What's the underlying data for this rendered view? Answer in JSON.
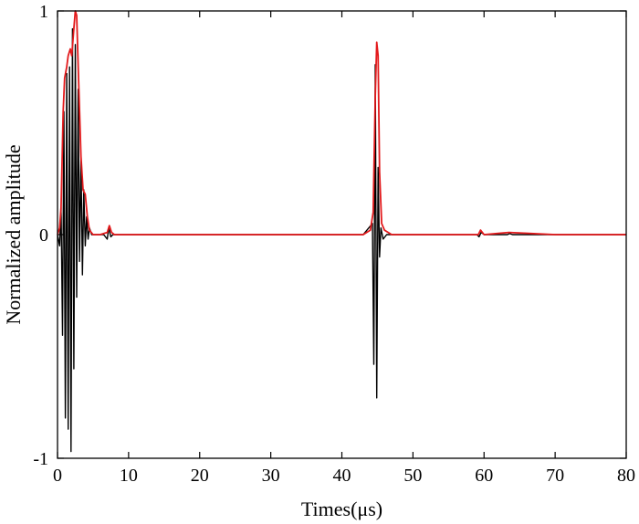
{
  "chart_data": {
    "type": "line",
    "title": "",
    "xlabel": "Times(μs)",
    "ylabel": "Normalized amplitude",
    "xlim": [
      0,
      80
    ],
    "ylim": [
      -1,
      1
    ],
    "xticks": [
      0,
      10,
      20,
      30,
      40,
      50,
      60,
      70,
      80
    ],
    "yticks": [
      -1,
      0,
      1
    ],
    "grid": false,
    "legend": "none",
    "series": [
      {
        "color": "#000000",
        "style": "oscillating waveform",
        "x": [
          0,
          0.3,
          0.5,
          0.7,
          0.9,
          1.1,
          1.3,
          1.5,
          1.7,
          1.9,
          2.1,
          2.3,
          2.5,
          2.7,
          2.9,
          3.1,
          3.3,
          3.5,
          3.7,
          3.9,
          4.1,
          4.3,
          4.5,
          4.8,
          5.5,
          6.5,
          7.0,
          7.2,
          7.5,
          7.8,
          8.3,
          10,
          20,
          30,
          40,
          43,
          44.3,
          44.5,
          44.7,
          44.9,
          45.1,
          45.3,
          45.5,
          45.8,
          46.3,
          48,
          55,
          59.0,
          59.3,
          59.6,
          60,
          63.3,
          63.6,
          64,
          70,
          75,
          80
        ],
        "y": [
          0,
          -0.05,
          0.12,
          -0.45,
          0.55,
          -0.82,
          0.72,
          -0.87,
          0.75,
          -0.97,
          0.92,
          -0.6,
          0.85,
          -0.28,
          0.65,
          -0.12,
          0.35,
          -0.18,
          0.2,
          -0.05,
          0.08,
          -0.02,
          0.03,
          0,
          0,
          0,
          -0.02,
          0.03,
          -0.01,
          0,
          0,
          0,
          0,
          0,
          0,
          0,
          0.05,
          -0.58,
          0.76,
          -0.73,
          0.3,
          -0.1,
          0.03,
          -0.02,
          0,
          0,
          0,
          0,
          -0.01,
          0.01,
          0,
          0,
          0.005,
          0,
          0,
          0,
          0
        ]
      },
      {
        "color": "#e31a1c",
        "style": "envelope",
        "x": [
          0,
          0.3,
          0.5,
          0.8,
          1.0,
          1.3,
          1.5,
          1.8,
          2.0,
          2.3,
          2.5,
          2.7,
          3.0,
          3.3,
          3.6,
          3.9,
          4.2,
          4.5,
          5.0,
          6.0,
          7.0,
          7.3,
          7.6,
          8.0,
          10,
          20,
          30,
          40,
          43,
          44.0,
          44.4,
          44.7,
          44.9,
          45.1,
          45.3,
          45.6,
          46.0,
          47,
          55,
          59.2,
          59.5,
          60,
          63.5,
          70,
          80
        ],
        "y": [
          0,
          0.03,
          0.12,
          0.55,
          0.7,
          0.75,
          0.8,
          0.83,
          0.8,
          0.92,
          1.0,
          0.98,
          0.65,
          0.35,
          0.2,
          0.18,
          0.08,
          0.02,
          0,
          0,
          0.01,
          0.04,
          0.01,
          0,
          0,
          0,
          0,
          0,
          0,
          0.02,
          0.1,
          0.62,
          0.86,
          0.8,
          0.28,
          0.05,
          0.02,
          0,
          0,
          0,
          0.02,
          0,
          0.01,
          0,
          0
        ]
      }
    ]
  }
}
